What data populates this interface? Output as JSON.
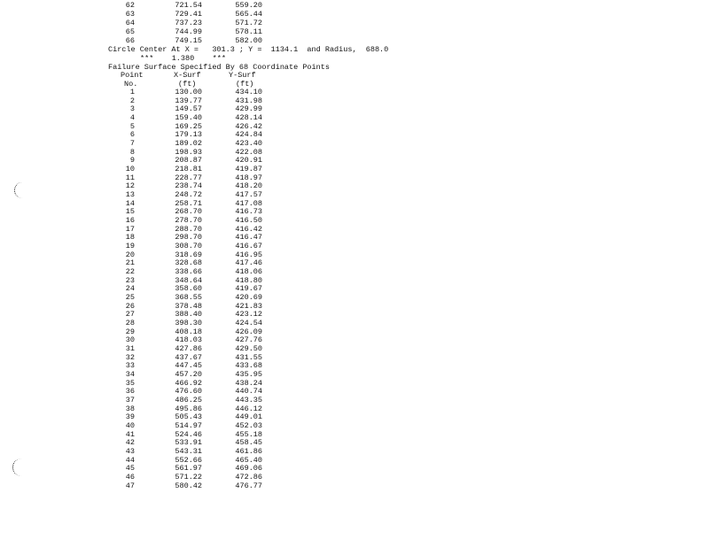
{
  "top_rows": [
    {
      "no": "62",
      "x": "721.54",
      "y": "559.20"
    },
    {
      "no": "63",
      "x": "729.41",
      "y": "565.44"
    },
    {
      "no": "64",
      "x": "737.23",
      "y": "571.72"
    },
    {
      "no": "65",
      "x": "744.99",
      "y": "578.11"
    },
    {
      "no": "66",
      "x": "749.15",
      "y": "582.00"
    }
  ],
  "circle_line": "Circle Center At X =   301.3 ; Y =  1134.1  and Radius,  688.0",
  "factor_line": "***    1.380    ***",
  "surface_line": "Failure Surface Specified By 68 Coordinate Points",
  "headers": {
    "point": "Point",
    "no": "No.",
    "xsurf": "X-Surf",
    "xunit": "(ft)",
    "ysurf": "Y-Surf",
    "yunit": "(ft)"
  },
  "points": [
    {
      "no": "1",
      "x": "130.00",
      "y": "434.10"
    },
    {
      "no": "2",
      "x": "139.77",
      "y": "431.98"
    },
    {
      "no": "3",
      "x": "149.57",
      "y": "429.99"
    },
    {
      "no": "4",
      "x": "159.40",
      "y": "428.14"
    },
    {
      "no": "5",
      "x": "169.25",
      "y": "426.42"
    },
    {
      "no": "6",
      "x": "179.13",
      "y": "424.84"
    },
    {
      "no": "7",
      "x": "189.02",
      "y": "423.40"
    },
    {
      "no": "8",
      "x": "198.93",
      "y": "422.08"
    },
    {
      "no": "9",
      "x": "208.87",
      "y": "420.91"
    },
    {
      "no": "10",
      "x": "218.81",
      "y": "419.87"
    },
    {
      "no": "11",
      "x": "228.77",
      "y": "418.97"
    },
    {
      "no": "12",
      "x": "238.74",
      "y": "418.20"
    },
    {
      "no": "13",
      "x": "248.72",
      "y": "417.57"
    },
    {
      "no": "14",
      "x": "258.71",
      "y": "417.08"
    },
    {
      "no": "15",
      "x": "268.70",
      "y": "416.73"
    },
    {
      "no": "16",
      "x": "278.70",
      "y": "416.50"
    },
    {
      "no": "17",
      "x": "288.70",
      "y": "416.42"
    },
    {
      "no": "18",
      "x": "298.70",
      "y": "416.47"
    },
    {
      "no": "19",
      "x": "308.70",
      "y": "416.67"
    },
    {
      "no": "20",
      "x": "318.69",
      "y": "416.95"
    },
    {
      "no": "21",
      "x": "328.68",
      "y": "417.46"
    },
    {
      "no": "22",
      "x": "338.66",
      "y": "418.06"
    },
    {
      "no": "23",
      "x": "348.64",
      "y": "418.80"
    },
    {
      "no": "24",
      "x": "358.60",
      "y": "419.67"
    },
    {
      "no": "25",
      "x": "368.55",
      "y": "420.69"
    },
    {
      "no": "26",
      "x": "378.48",
      "y": "421.83"
    },
    {
      "no": "27",
      "x": "388.40",
      "y": "423.12"
    },
    {
      "no": "28",
      "x": "398.30",
      "y": "424.54"
    },
    {
      "no": "29",
      "x": "408.18",
      "y": "426.09"
    },
    {
      "no": "30",
      "x": "418.03",
      "y": "427.76"
    },
    {
      "no": "31",
      "x": "427.86",
      "y": "429.50"
    },
    {
      "no": "32",
      "x": "437.67",
      "y": "431.55"
    },
    {
      "no": "33",
      "x": "447.45",
      "y": "433.68"
    },
    {
      "no": "34",
      "x": "457.20",
      "y": "435.95"
    },
    {
      "no": "35",
      "x": "466.92",
      "y": "438.24"
    },
    {
      "no": "36",
      "x": "476.60",
      "y": "440.74"
    },
    {
      "no": "37",
      "x": "486.25",
      "y": "443.35"
    },
    {
      "no": "38",
      "x": "495.86",
      "y": "446.12"
    },
    {
      "no": "39",
      "x": "505.43",
      "y": "449.01"
    },
    {
      "no": "40",
      "x": "514.97",
      "y": "452.03"
    },
    {
      "no": "41",
      "x": "524.46",
      "y": "455.18"
    },
    {
      "no": "42",
      "x": "533.91",
      "y": "458.45"
    },
    {
      "no": "43",
      "x": "543.31",
      "y": "461.86"
    },
    {
      "no": "44",
      "x": "552.66",
      "y": "465.40"
    },
    {
      "no": "45",
      "x": "561.97",
      "y": "469.06"
    },
    {
      "no": "46",
      "x": "571.22",
      "y": "472.86"
    },
    {
      "no": "47",
      "x": "580.42",
      "y": "476.77"
    }
  ]
}
